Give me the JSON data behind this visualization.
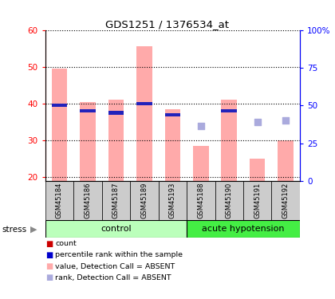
{
  "title": "GDS1251 / 1376534_at",
  "samples": [
    "GSM45184",
    "GSM45186",
    "GSM45187",
    "GSM45189",
    "GSM45193",
    "GSM45188",
    "GSM45190",
    "GSM45191",
    "GSM45192"
  ],
  "bar_values_pink": [
    49.5,
    40.5,
    41.0,
    55.5,
    38.5,
    28.5,
    41.0,
    25.0,
    30.0
  ],
  "bar_values_blue": [
    39.5,
    38.0,
    37.5,
    40.0,
    37.0,
    null,
    38.0,
    null,
    null
  ],
  "scatter_blue": [
    null,
    null,
    null,
    null,
    null,
    34.0,
    null,
    35.0,
    35.5
  ],
  "ylim_left": [
    19,
    60
  ],
  "yticks_left": [
    20,
    30,
    40,
    50,
    60
  ],
  "yticks_right": [
    0,
    25,
    50,
    75,
    100
  ],
  "ytick_labels_right": [
    "0",
    "25",
    "50",
    "75",
    "100%"
  ],
  "color_pink": "#ffaaaa",
  "color_blue_bar": "#2222bb",
  "color_blue_scatter": "#aaaadd",
  "tick_label_area_color": "#cccccc",
  "bar_bottom": 19,
  "bar_width": 0.55,
  "legend_items": [
    {
      "label": "count",
      "color": "#cc0000"
    },
    {
      "label": "percentile rank within the sample",
      "color": "#0000cc"
    },
    {
      "label": "value, Detection Call = ABSENT",
      "color": "#ffaaaa"
    },
    {
      "label": "rank, Detection Call = ABSENT",
      "color": "#aaaadd"
    }
  ],
  "stress_label": "stress",
  "control_label": "control",
  "acute_label": "acute hypotension",
  "n_control": 5,
  "n_acute": 4
}
